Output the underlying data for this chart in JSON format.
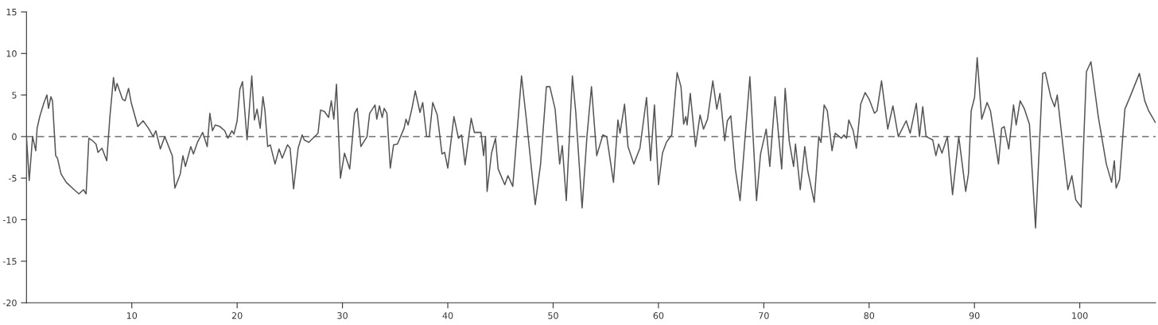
{
  "chart_data": {
    "type": "line",
    "xlim": [
      0,
      107.2
    ],
    "ylim": [
      -20,
      15
    ],
    "xticks": [
      10,
      20,
      30,
      40,
      50,
      60,
      70,
      80,
      90,
      100
    ],
    "yticks": [
      -20,
      -15,
      -10,
      -5,
      0,
      5,
      10,
      15
    ],
    "grid": false,
    "legend": false,
    "marker": "none",
    "line_style": "solid",
    "ref_lines": [
      {
        "axis": "y",
        "value": 0,
        "color": "#555555",
        "line_style": "dashed"
      }
    ],
    "series": [
      {
        "color": "#555555",
        "x": [
          0,
          0.26,
          0.58,
          0.88,
          1.01,
          1.26,
          1.64,
          1.94,
          2.09,
          2.32,
          2.47,
          2.77,
          2.94,
          3.28,
          3.77,
          4.53,
          4.98,
          5.41,
          5.66,
          5.92,
          6.17,
          6.6,
          6.79,
          7.17,
          7.62,
          7.92,
          8.26,
          8.43,
          8.6,
          9.11,
          9.36,
          9.69,
          9.94,
          10.57,
          11.07,
          11.58,
          12.03,
          12.28,
          12.71,
          13.13,
          13.84,
          14.09,
          14.6,
          14.85,
          15.09,
          15.6,
          15.85,
          16.23,
          16.73,
          17.16,
          17.41,
          17.66,
          17.92,
          18.37,
          18.82,
          19.12,
          19.5,
          19.7,
          20.0,
          20.26,
          20.51,
          20.94,
          21.39,
          21.64,
          21.89,
          22.19,
          22.45,
          22.64,
          22.9,
          23.15,
          23.6,
          23.98,
          24.28,
          24.78,
          25.03,
          25.36,
          25.79,
          26.17,
          26.37,
          26.79,
          27.68,
          27.92,
          28.3,
          28.68,
          28.94,
          29.18,
          29.43,
          29.81,
          30.19,
          30.69,
          31.15,
          31.4,
          31.75,
          32.33,
          32.58,
          33.09,
          33.26,
          33.51,
          33.77,
          33.96,
          34.22,
          34.54,
          34.85,
          35.22,
          35.85,
          36.03,
          36.23,
          36.6,
          36.91,
          37.36,
          37.62,
          37.99,
          38.24,
          38.57,
          39.0,
          39.45,
          39.7,
          40.0,
          40.58,
          41.01,
          41.31,
          41.64,
          42.22,
          42.52,
          43.15,
          43.4,
          43.58,
          43.73,
          44.15,
          44.53,
          44.78,
          45.41,
          45.71,
          46.17,
          47.0,
          47.43,
          48.3,
          48.81,
          49.36,
          49.69,
          50.19,
          50.62,
          50.87,
          51.25,
          51.83,
          52.15,
          52.75,
          53.21,
          53.64,
          54.14,
          54.72,
          55.09,
          55.73,
          56.15,
          56.35,
          56.78,
          57.11,
          57.66,
          58.24,
          58.87,
          59.25,
          59.62,
          60.0,
          60.38,
          60.75,
          61.26,
          61.77,
          62.14,
          62.39,
          62.6,
          62.72,
          63.02,
          63.52,
          63.95,
          64.28,
          64.66,
          65.16,
          65.54,
          65.84,
          66.29,
          66.54,
          66.87,
          67.3,
          67.75,
          68.68,
          69.31,
          69.69,
          70.23,
          70.57,
          71.07,
          71.7,
          72.03,
          72.41,
          72.83,
          73.01,
          73.46,
          73.89,
          74.17,
          74.79,
          75.22,
          75.43,
          75.73,
          76.03,
          76.48,
          76.78,
          77.36,
          77.62,
          77.86,
          78.07,
          78.49,
          78.79,
          79.2,
          79.62,
          80.0,
          80.51,
          80.75,
          81.18,
          81.77,
          82.26,
          82.77,
          83.52,
          83.9,
          84.48,
          84.78,
          85.09,
          85.41,
          86.04,
          86.34,
          86.6,
          86.92,
          87.43,
          87.92,
          88.51,
          89.17,
          89.43,
          89.69,
          90.01,
          90.26,
          90.69,
          91.2,
          91.52,
          92.28,
          92.58,
          92.83,
          93.26,
          93.71,
          93.96,
          94.34,
          94.72,
          95.22,
          95.8,
          96.48,
          96.73,
          97.24,
          97.61,
          97.86,
          98.87,
          99.25,
          99.62,
          100.13,
          100.63,
          101.06,
          101.77,
          102.52,
          103.02,
          103.28,
          103.45,
          103.77,
          104.28,
          104.78,
          105.66,
          106.17,
          106.54,
          107.17
        ],
        "values": [
          0.0,
          -5.3,
          0.0,
          -1.7,
          1.0,
          2.4,
          4.0,
          5.0,
          3.4,
          4.8,
          4.3,
          -2.3,
          -2.6,
          -4.5,
          -5.5,
          -6.4,
          -6.9,
          -6.4,
          -6.9,
          -0.2,
          -0.4,
          -0.9,
          -1.9,
          -1.4,
          -2.9,
          2.4,
          7.1,
          5.5,
          6.4,
          4.5,
          4.3,
          5.8,
          4.1,
          1.2,
          1.9,
          1.0,
          0.0,
          0.7,
          -1.5,
          0.0,
          -2.3,
          -6.2,
          -4.5,
          -2.3,
          -3.6,
          -1.2,
          -2.1,
          -0.7,
          0.5,
          -1.2,
          2.8,
          0.7,
          1.4,
          1.2,
          0.7,
          -0.2,
          0.7,
          0.3,
          1.9,
          5.7,
          6.6,
          -0.4,
          7.3,
          2.0,
          3.3,
          1.0,
          4.8,
          3.1,
          -1.2,
          -1.0,
          -3.3,
          -1.5,
          -2.6,
          -1.0,
          -1.4,
          -6.3,
          -1.4,
          0.2,
          -0.4,
          -0.7,
          0.4,
          3.2,
          3.0,
          2.3,
          4.3,
          2.1,
          6.3,
          -5.0,
          -2.0,
          -3.9,
          2.8,
          3.4,
          -1.2,
          0.0,
          2.8,
          3.8,
          2.1,
          3.7,
          2.3,
          3.4,
          2.8,
          -3.8,
          -1.0,
          -0.9,
          1.0,
          2.1,
          1.4,
          3.4,
          5.5,
          2.9,
          4.1,
          0.0,
          0.0,
          4.1,
          2.6,
          -2.1,
          -1.9,
          -3.8,
          2.4,
          -0.2,
          0.2,
          -3.4,
          2.2,
          0.5,
          0.5,
          -2.3,
          0.0,
          -6.6,
          -2.0,
          -0.2,
          -3.9,
          -5.8,
          -4.7,
          -6.0,
          7.3,
          2.4,
          -8.2,
          -3.3,
          6.0,
          6.0,
          3.3,
          -3.3,
          -1.1,
          -7.7,
          7.3,
          2.9,
          -8.6,
          0.0,
          6.0,
          -2.3,
          0.2,
          0.0,
          -5.5,
          2.0,
          0.4,
          3.9,
          -1.2,
          -3.3,
          -1.4,
          4.7,
          -2.9,
          3.8,
          -5.8,
          -2.0,
          -0.7,
          0.2,
          7.7,
          6.0,
          1.5,
          2.4,
          1.4,
          5.2,
          -1.2,
          2.6,
          0.9,
          2.1,
          6.7,
          3.3,
          5.2,
          -0.5,
          1.9,
          2.5,
          -3.9,
          -7.7,
          7.2,
          -7.7,
          -2.1,
          0.9,
          -3.6,
          4.8,
          -3.9,
          5.8,
          -0.5,
          -3.6,
          -0.9,
          -6.4,
          -1.2,
          -4.1,
          -7.9,
          0.0,
          -0.7,
          3.8,
          3.1,
          -1.7,
          0.4,
          -0.2,
          0.2,
          -0.2,
          2.0,
          0.7,
          -1.4,
          3.9,
          5.3,
          4.5,
          2.8,
          3.1,
          6.7,
          0.9,
          3.7,
          0.0,
          1.9,
          0.4,
          4.0,
          0.0,
          3.6,
          0.0,
          -0.4,
          -2.3,
          -0.9,
          -2.0,
          0.0,
          -7.0,
          0.0,
          -6.6,
          -4.5,
          3.1,
          4.7,
          9.5,
          2.1,
          4.1,
          3.1,
          -3.3,
          1.0,
          1.2,
          -1.5,
          3.8,
          1.4,
          4.3,
          3.4,
          1.5,
          -11.0,
          7.6,
          7.7,
          4.8,
          3.6,
          5.0,
          -6.4,
          -4.7,
          -7.6,
          -8.5,
          7.8,
          9.0,
          2.3,
          -3.3,
          -5.5,
          -2.9,
          -6.2,
          -5.2,
          3.3,
          4.8,
          7.6,
          4.3,
          3.1,
          1.7
        ]
      }
    ]
  }
}
